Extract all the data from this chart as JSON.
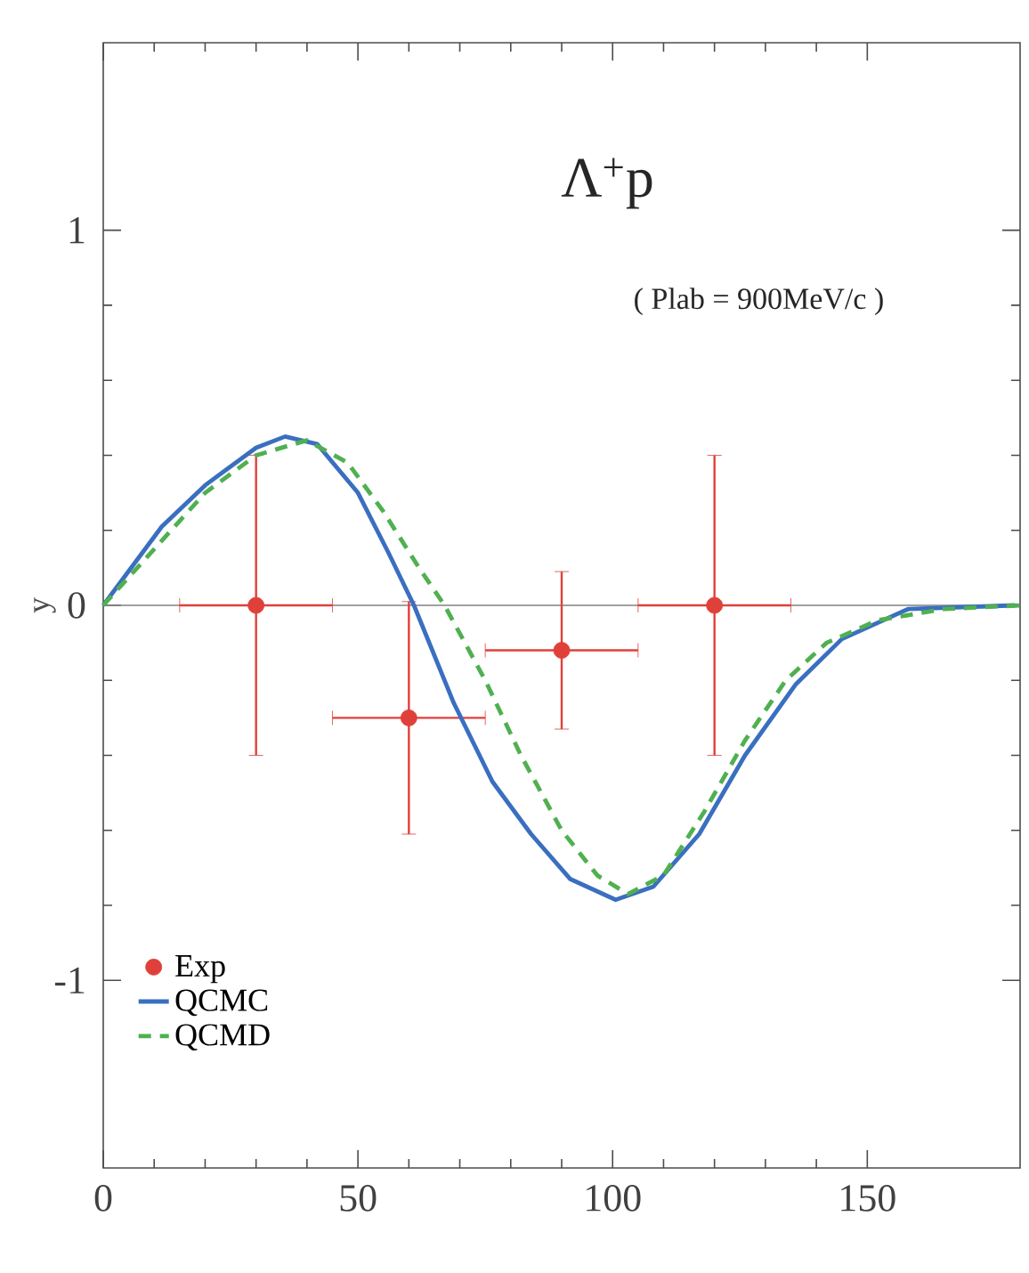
{
  "chart_data": {
    "type": "line",
    "title": "Λ$^{+}$p",
    "subtitle": "( Plab = 900MeV/c )",
    "ylabel": "y",
    "xlim": [
      0,
      180
    ],
    "ylim": [
      -1.5,
      1.5
    ],
    "xticks": [
      0,
      50,
      100,
      150
    ],
    "yticks": [
      -1,
      0,
      1
    ],
    "legend": "bottom left",
    "ref_lines": [
      {
        "axis": "y",
        "value": 0,
        "color": "#808080"
      }
    ],
    "series": [
      {
        "name": "Exp",
        "type": "scatter",
        "marker": "circle",
        "color": "#e0403a",
        "x": [
          30,
          60,
          90,
          120
        ],
        "values": [
          0,
          -0.3,
          -0.12,
          0
        ],
        "errors": [
          0.4,
          0.31,
          0.21,
          0.4
        ],
        "xerrors": [
          15,
          15,
          15,
          15
        ]
      },
      {
        "name": "QCMC",
        "marker": "none",
        "line_style": "solid",
        "color": "#3a6fc0",
        "x": [
          0,
          11.5,
          20,
          30,
          35.7,
          42,
          50,
          56,
          61,
          68.8,
          76.4,
          84,
          91.7,
          100.6,
          108,
          117,
          126,
          136,
          145,
          158,
          179
        ],
        "values": [
          0,
          0.21,
          0.32,
          0.42,
          0.45,
          0.43,
          0.3,
          0.14,
          0,
          -0.26,
          -0.47,
          -0.61,
          -0.73,
          -0.785,
          -0.75,
          -0.61,
          -0.4,
          -0.21,
          -0.09,
          -0.01,
          0
        ]
      },
      {
        "name": "QCMD",
        "marker": "none",
        "line_style": "dashed",
        "color": "#50b050",
        "x": [
          0,
          10,
          20,
          30,
          40,
          48,
          55,
          62,
          67,
          75,
          82,
          90,
          97,
          103,
          110,
          118,
          126,
          134,
          142,
          152,
          165,
          180
        ],
        "values": [
          0,
          0.15,
          0.3,
          0.4,
          0.44,
          0.38,
          0.25,
          0.1,
          0,
          -0.2,
          -0.4,
          -0.6,
          -0.72,
          -0.77,
          -0.72,
          -0.55,
          -0.36,
          -0.2,
          -0.1,
          -0.04,
          -0.01,
          0
        ]
      }
    ]
  }
}
